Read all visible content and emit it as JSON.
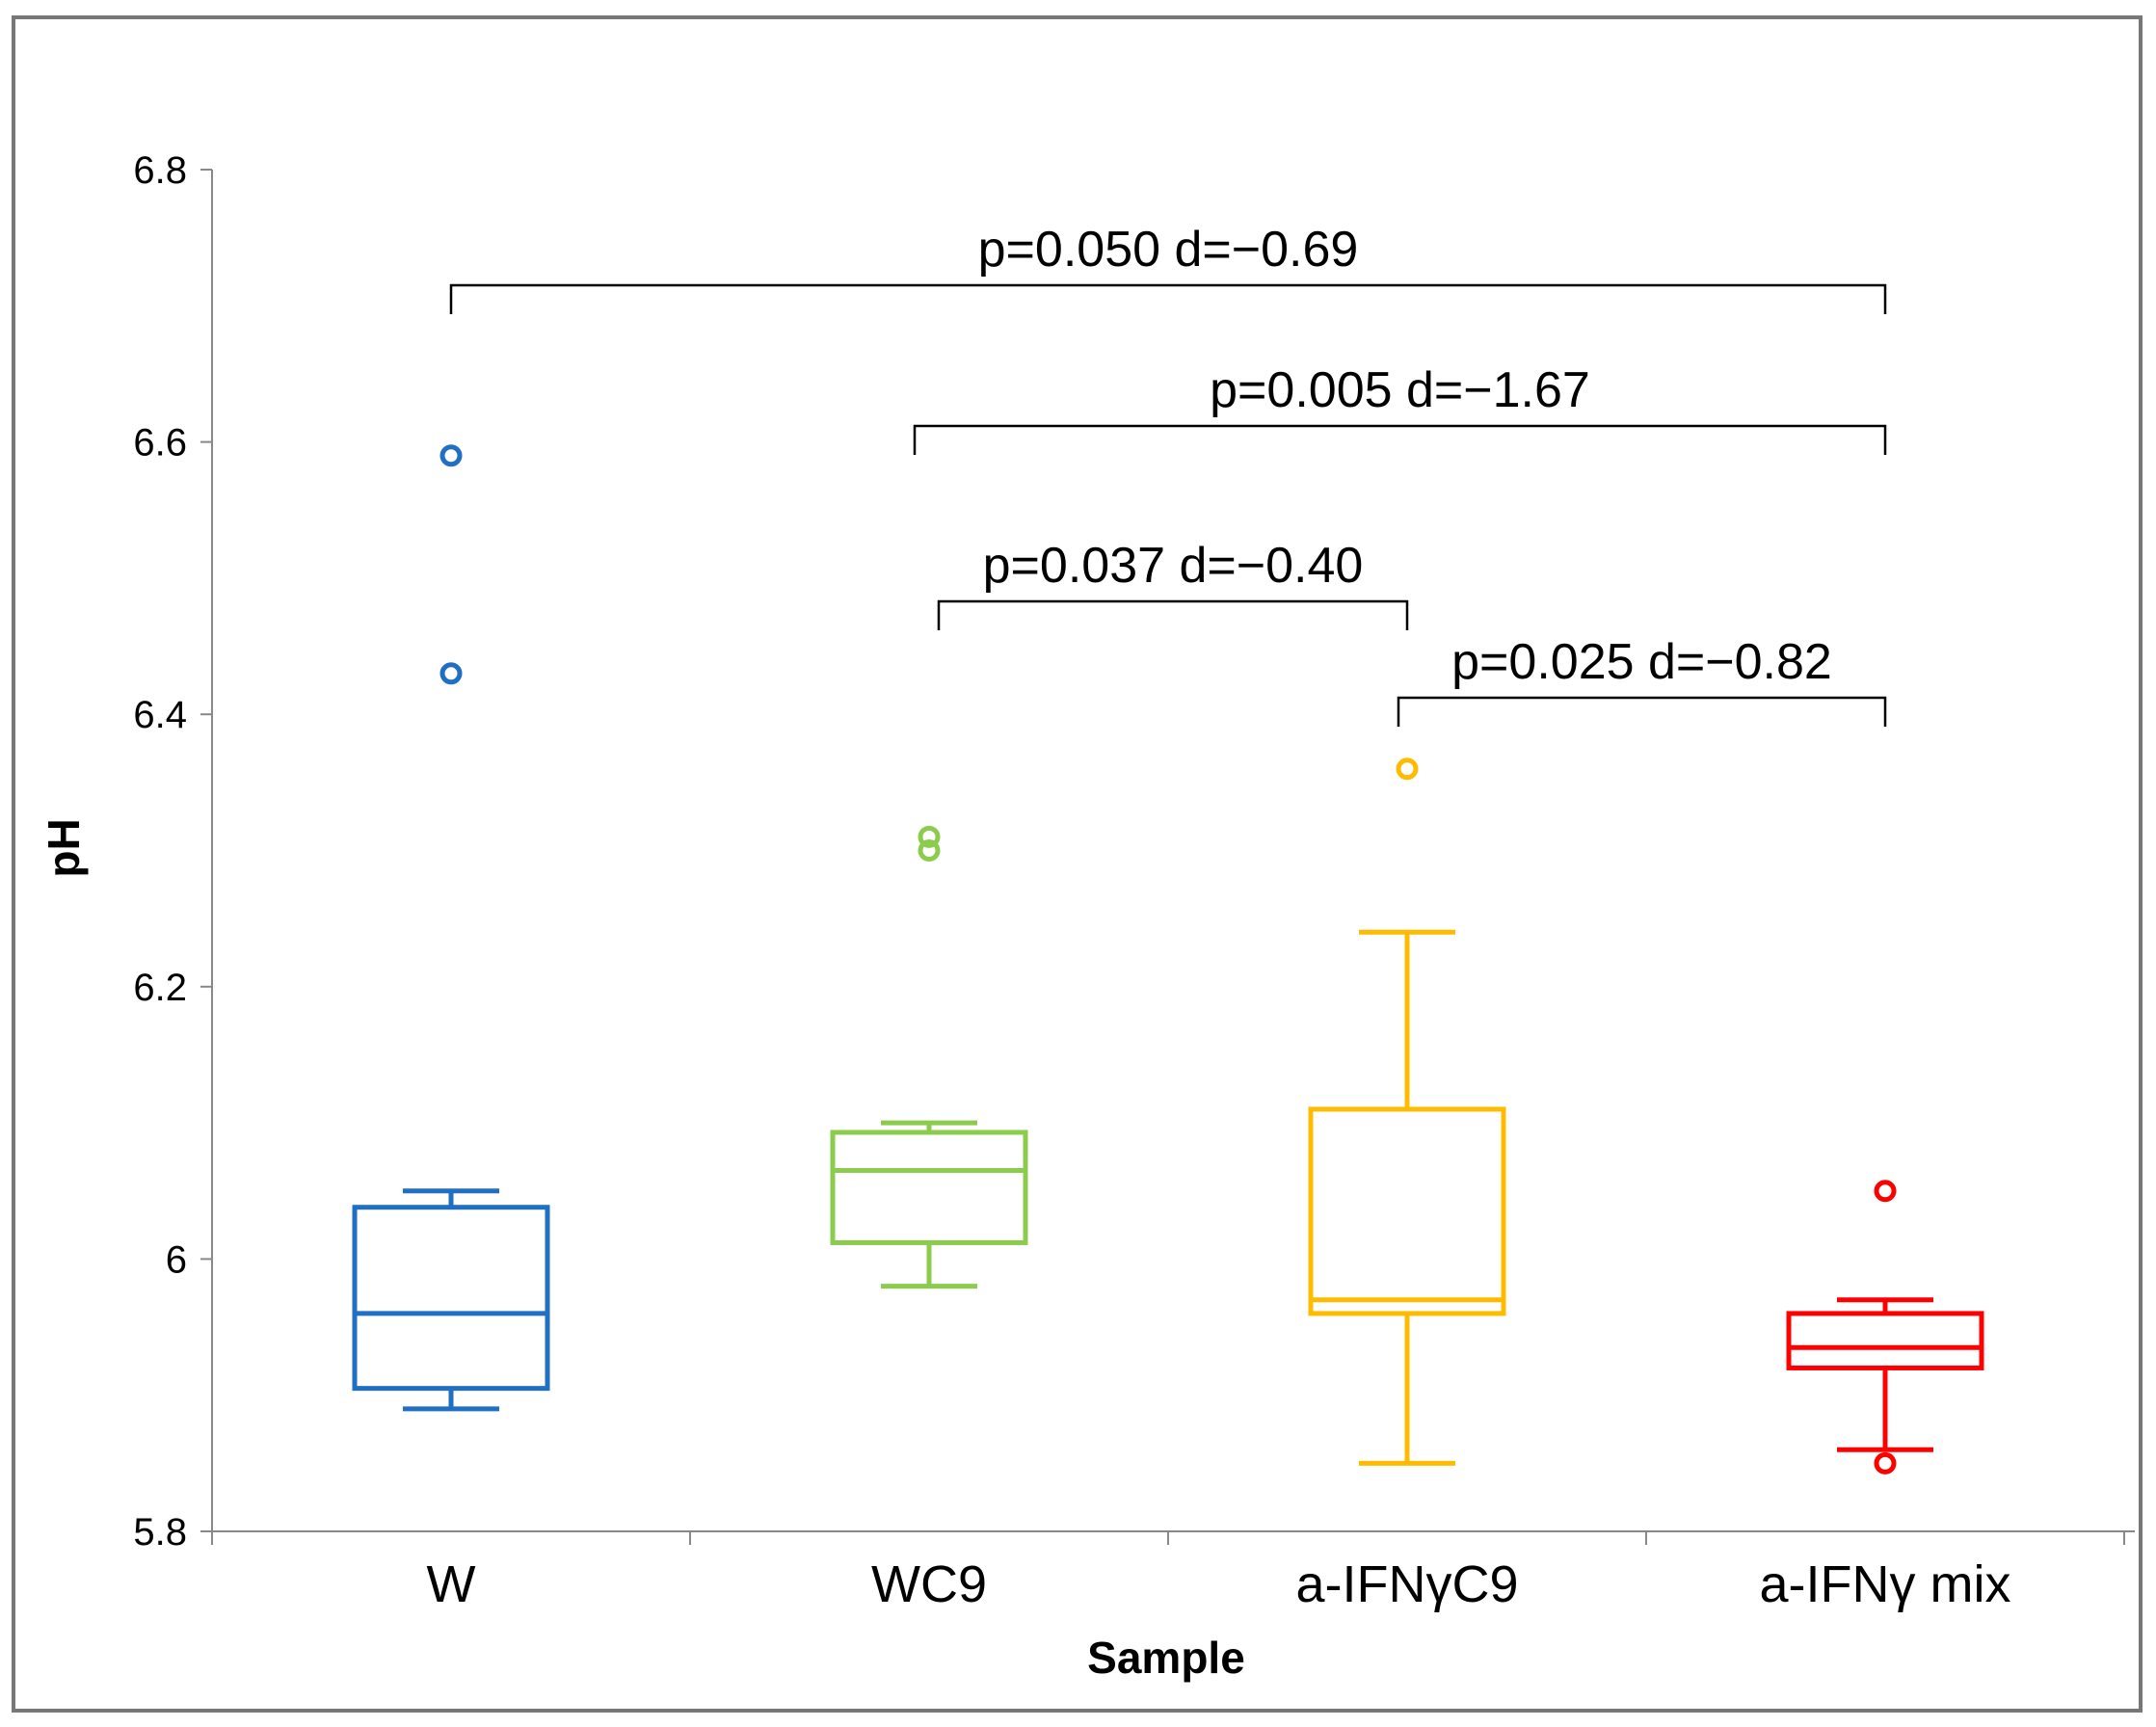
{
  "chart_data": {
    "type": "box",
    "title": "",
    "xlabel": "Sample",
    "ylabel": "pH",
    "ylim": [
      5.8,
      6.8
    ],
    "yticks": [
      5.8,
      6.0,
      6.2,
      6.4,
      6.6,
      6.8
    ],
    "ytick_labels": [
      "5.8",
      "6",
      "6.2",
      "6.4",
      "6.6",
      "6.8"
    ],
    "categories": [
      "W",
      "WC9",
      "a-IFNγC9",
      "a-IFNγ mix"
    ],
    "series": [
      {
        "name": "W",
        "color": "#1f6fc5",
        "whisker_low": 5.89,
        "q1": 5.905,
        "median": 5.96,
        "q3": 6.038,
        "whisker_high": 6.05,
        "outliers": [
          6.43,
          6.59
        ]
      },
      {
        "name": "WC9",
        "color": "#8ccc4c",
        "whisker_low": 5.98,
        "q1": 6.012,
        "median": 6.065,
        "q3": 6.093,
        "whisker_high": 6.1,
        "outliers": [
          6.3,
          6.31
        ]
      },
      {
        "name": "a-IFNγC9",
        "color": "#ffbb00",
        "whisker_low": 5.85,
        "q1": 5.96,
        "median": 5.97,
        "q3": 6.11,
        "whisker_high": 6.24,
        "outliers": [
          6.36
        ]
      },
      {
        "name": "a-IFNγ mix",
        "color": "#ff0000",
        "whisker_low": 5.86,
        "q1": 5.92,
        "median": 5.935,
        "q3": 5.96,
        "whisker_high": 5.97,
        "outliers": [
          6.05,
          5.85
        ]
      }
    ],
    "annotations": [
      {
        "label": "p=0.050  d=−0.69",
        "from": "W",
        "to": "a-IFNγ mix"
      },
      {
        "label": "p=0.005  d=−1.67",
        "from": "WC9",
        "to": "a-IFNγ mix"
      },
      {
        "label": "p=0.037  d=−0.40",
        "from": "WC9",
        "to": "a-IFNγC9"
      },
      {
        "label": "p=0.025  d=−0.82",
        "from": "a-IFNγC9",
        "to": "a-IFNγ mix"
      }
    ]
  }
}
